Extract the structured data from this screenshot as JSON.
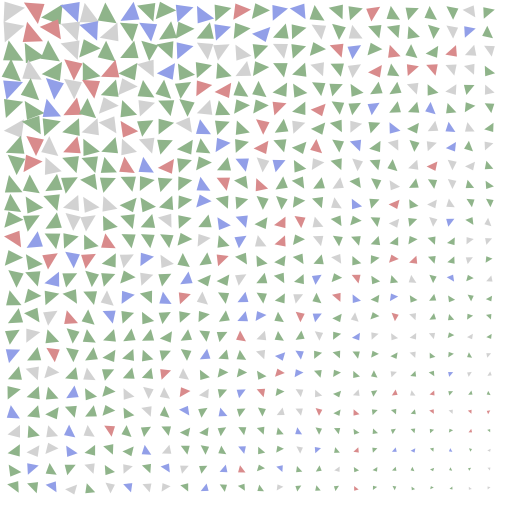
{
  "pattern": {
    "colors": [
      "#8fb48a",
      "#8fb48a",
      "#8fb48a",
      "#8fb48a",
      "#8fb48a",
      "#8fb48a",
      "#d2d2d2",
      "#d2d2d2",
      "#929fe8",
      "#d98b8c"
    ]
  }
}
